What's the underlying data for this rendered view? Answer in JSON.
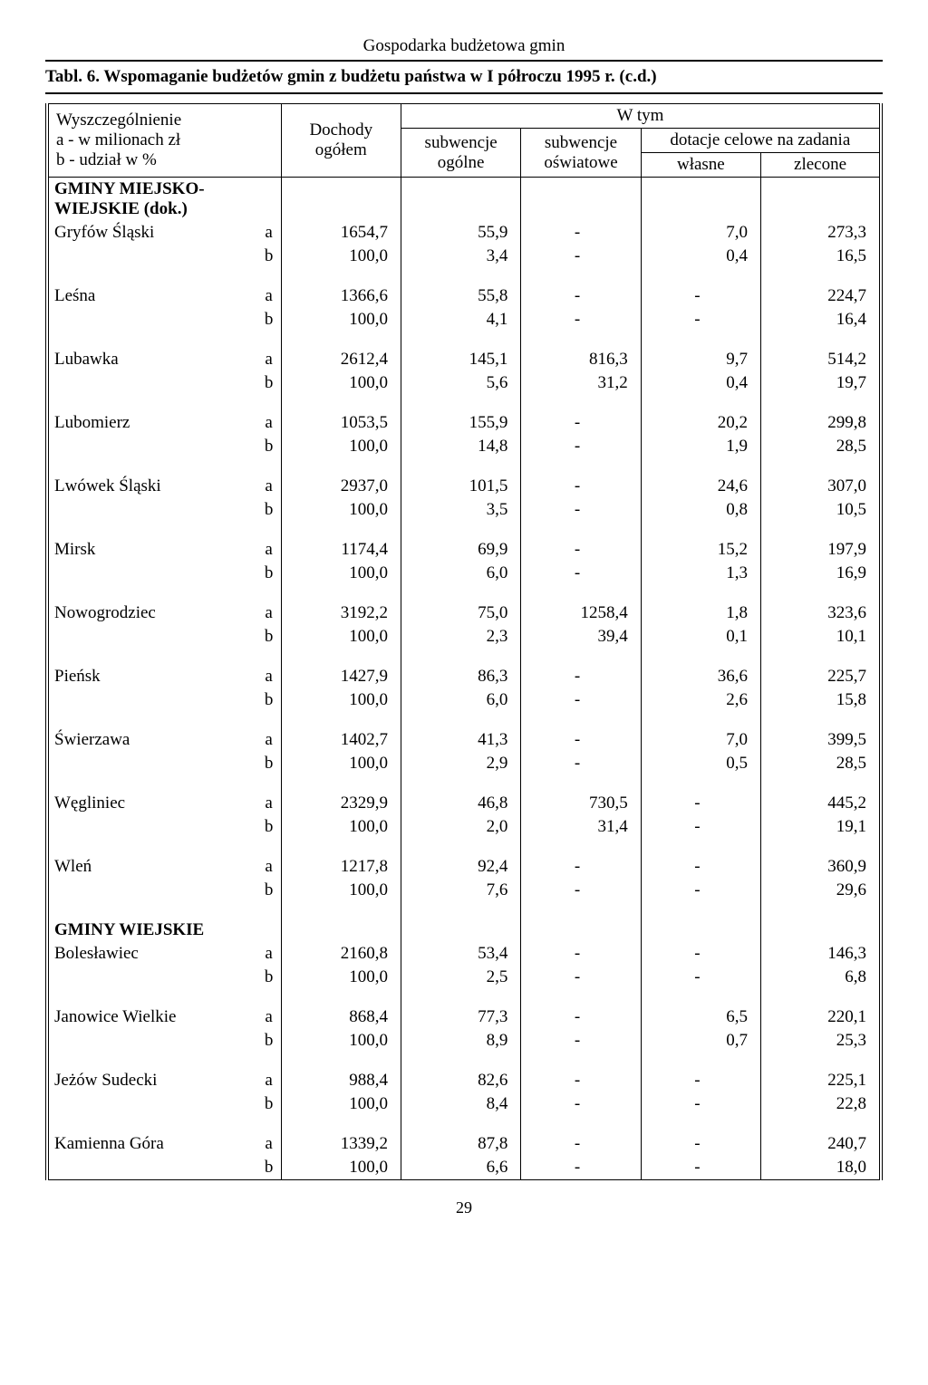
{
  "page": {
    "running_header": "Gospodarka budżetowa gmin",
    "table_caption": "Tabl. 6. Wspomaganie budżetów gmin z budżetu państwa w I półroczu 1995 r. (c.d.)",
    "page_number": "29"
  },
  "header": {
    "specification": "Wyszczególnienie",
    "line_a": "a - w milionach zł",
    "line_b": "b - udział w %",
    "dochody": "Dochody ogółem",
    "wtym": "W tym",
    "sub_ogolne": "subwencje ogólne",
    "sub_oswiatowe": "subwencje oświatowe",
    "dotacje": "dotacje celowe na zadania",
    "wlasne": "własne",
    "zlecone": "zlecone"
  },
  "sections": [
    {
      "title": "GMINY MIEJSKO-WIEJSKIE (dok.)",
      "rows": [
        {
          "name": "Gryfów Śląski",
          "a": [
            "1654,7",
            "55,9",
            "-",
            "7,0",
            "273,3"
          ],
          "b": [
            "100,0",
            "3,4",
            "-",
            "0,4",
            "16,5"
          ]
        },
        {
          "name": "Leśna",
          "a": [
            "1366,6",
            "55,8",
            "-",
            "-",
            "224,7"
          ],
          "b": [
            "100,0",
            "4,1",
            "-",
            "-",
            "16,4"
          ]
        },
        {
          "name": "Lubawka",
          "a": [
            "2612,4",
            "145,1",
            "816,3",
            "9,7",
            "514,2"
          ],
          "b": [
            "100,0",
            "5,6",
            "31,2",
            "0,4",
            "19,7"
          ]
        },
        {
          "name": "Lubomierz",
          "a": [
            "1053,5",
            "155,9",
            "-",
            "20,2",
            "299,8"
          ],
          "b": [
            "100,0",
            "14,8",
            "-",
            "1,9",
            "28,5"
          ]
        },
        {
          "name": "Lwówek Śląski",
          "a": [
            "2937,0",
            "101,5",
            "-",
            "24,6",
            "307,0"
          ],
          "b": [
            "100,0",
            "3,5",
            "-",
            "0,8",
            "10,5"
          ]
        },
        {
          "name": "Mirsk",
          "a": [
            "1174,4",
            "69,9",
            "-",
            "15,2",
            "197,9"
          ],
          "b": [
            "100,0",
            "6,0",
            "-",
            "1,3",
            "16,9"
          ]
        },
        {
          "name": "Nowogrodziec",
          "a": [
            "3192,2",
            "75,0",
            "1258,4",
            "1,8",
            "323,6"
          ],
          "b": [
            "100,0",
            "2,3",
            "39,4",
            "0,1",
            "10,1"
          ]
        },
        {
          "name": "Pieńsk",
          "a": [
            "1427,9",
            "86,3",
            "-",
            "36,6",
            "225,7"
          ],
          "b": [
            "100,0",
            "6,0",
            "-",
            "2,6",
            "15,8"
          ]
        },
        {
          "name": "Świerzawa",
          "a": [
            "1402,7",
            "41,3",
            "-",
            "7,0",
            "399,5"
          ],
          "b": [
            "100,0",
            "2,9",
            "-",
            "0,5",
            "28,5"
          ]
        },
        {
          "name": "Węgliniec",
          "a": [
            "2329,9",
            "46,8",
            "730,5",
            "-",
            "445,2"
          ],
          "b": [
            "100,0",
            "2,0",
            "31,4",
            "-",
            "19,1"
          ]
        },
        {
          "name": "Wleń",
          "a": [
            "1217,8",
            "92,4",
            "-",
            "-",
            "360,9"
          ],
          "b": [
            "100,0",
            "7,6",
            "-",
            "-",
            "29,6"
          ]
        }
      ]
    },
    {
      "title": "GMINY WIEJSKIE",
      "rows": [
        {
          "name": "Bolesławiec",
          "a": [
            "2160,8",
            "53,4",
            "-",
            "-",
            "146,3"
          ],
          "b": [
            "100,0",
            "2,5",
            "-",
            "-",
            "6,8"
          ]
        },
        {
          "name": "Janowice Wielkie",
          "a": [
            "868,4",
            "77,3",
            "-",
            "6,5",
            "220,1"
          ],
          "b": [
            "100,0",
            "8,9",
            "-",
            "0,7",
            "25,3"
          ]
        },
        {
          "name": "Jeżów Sudecki",
          "a": [
            "988,4",
            "82,6",
            "-",
            "-",
            "225,1"
          ],
          "b": [
            "100,0",
            "8,4",
            "-",
            "-",
            "22,8"
          ]
        },
        {
          "name": "Kamienna Góra",
          "a": [
            "1339,2",
            "87,8",
            "-",
            "-",
            "240,7"
          ],
          "b": [
            "100,0",
            "6,6",
            "-",
            "-",
            "18,0"
          ]
        }
      ]
    }
  ]
}
